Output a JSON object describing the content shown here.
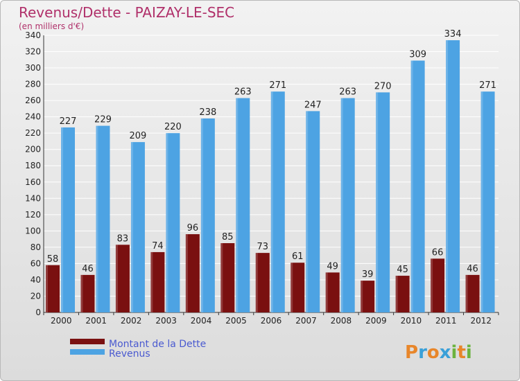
{
  "chart_data": {
    "type": "bar",
    "title": "Revenus/Dette - PAIZAY-LE-SEC",
    "subtitle": "(en milliers d'€)",
    "categories": [
      "2000",
      "2001",
      "2002",
      "2003",
      "2004",
      "2005",
      "2006",
      "2007",
      "2008",
      "2009",
      "2010",
      "2011",
      "2012"
    ],
    "series": [
      {
        "name": "Montant de la Dette",
        "values": [
          58,
          46,
          83,
          74,
          96,
          85,
          73,
          61,
          49,
          39,
          45,
          66,
          46
        ],
        "color": "#7a1010"
      },
      {
        "name": "Revenus",
        "values": [
          227,
          229,
          209,
          220,
          238,
          263,
          271,
          247,
          263,
          270,
          309,
          334,
          271
        ],
        "color": "#4da3e3"
      }
    ],
    "ylim": [
      0,
      340
    ],
    "ytick_step": 20,
    "grid": true,
    "legend_position": "bottom-left"
  },
  "logo": {
    "text": "Proxiti"
  },
  "colors": {
    "title": "#b0306a",
    "legend_text": "#4a5ad0",
    "grid": "#ffffff"
  }
}
